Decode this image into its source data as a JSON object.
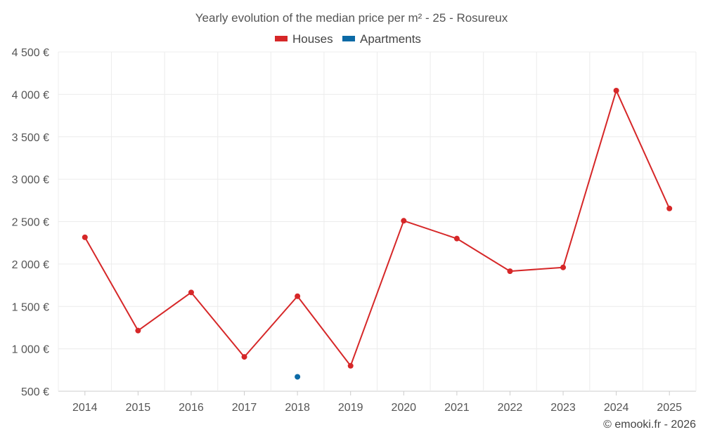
{
  "chart_data": {
    "type": "line",
    "title": "Yearly evolution of the median price per m² - 25 - Rosureux",
    "categories": [
      "2014",
      "2015",
      "2016",
      "2017",
      "2018",
      "2019",
      "2020",
      "2021",
      "2022",
      "2023",
      "2024",
      "2025"
    ],
    "series": [
      {
        "name": "Houses",
        "color": "#d62728",
        "values": [
          2315,
          1215,
          1665,
          905,
          1620,
          800,
          2510,
          2300,
          1915,
          1960,
          4045,
          2655
        ]
      },
      {
        "name": "Apartments",
        "color": "#0c6aa6",
        "values": [
          null,
          null,
          null,
          null,
          670,
          null,
          null,
          null,
          null,
          null,
          null,
          null
        ]
      }
    ],
    "ylim": [
      500,
      4500
    ],
    "yticks": [
      500,
      1000,
      1500,
      2000,
      2500,
      3000,
      3500,
      4000,
      4500
    ],
    "ytick_labels": [
      "500 €",
      "1 000 €",
      "1 500 €",
      "2 000 €",
      "2 500 €",
      "3 000 €",
      "3 500 €",
      "4 000 €",
      "4 500 €"
    ],
    "legend_position": "top-center",
    "grid": true
  },
  "credit": "© emooki.fr - 2026"
}
